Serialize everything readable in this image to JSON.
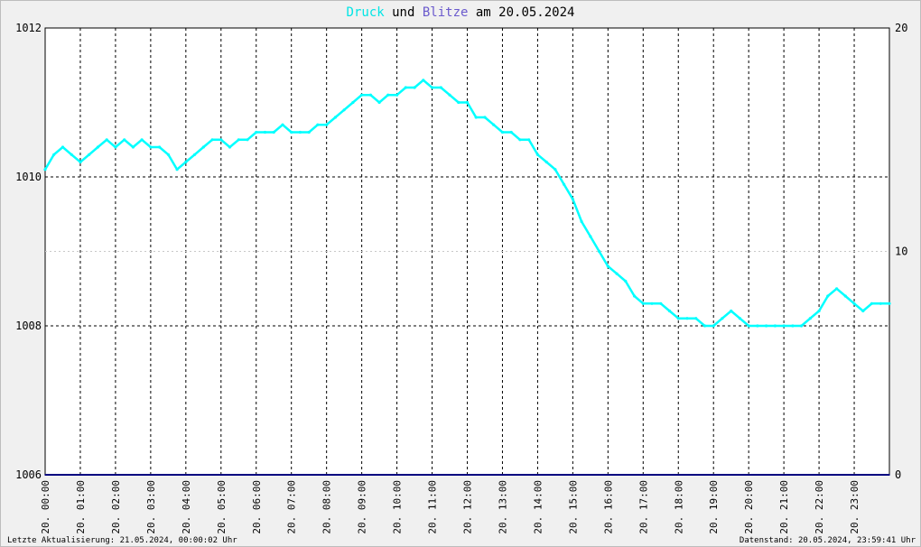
{
  "chart_data": {
    "type": "line",
    "title": {
      "parts": [
        {
          "text": "Druck",
          "color": "#00e5e5"
        },
        {
          "text": " und ",
          "color": "#000000"
        },
        {
          "text": "Blitze",
          "color": "#6a5acd"
        },
        {
          "text": " am 20.05.2024",
          "color": "#000000"
        }
      ]
    },
    "x_tick_labels": [
      "20. 00:00",
      "20. 01:00",
      "20. 02:00",
      "20. 03:00",
      "20. 04:00",
      "20. 05:00",
      "20. 06:00",
      "20. 07:00",
      "20. 08:00",
      "20. 09:00",
      "20. 10:00",
      "20. 11:00",
      "20. 12:00",
      "20. 13:00",
      "20. 14:00",
      "20. 15:00",
      "20. 16:00",
      "20. 17:00",
      "20. 18:00",
      "20. 19:00",
      "20. 20:00",
      "20. 21:00",
      "20. 22:00",
      "20. 23:00"
    ],
    "x_range_hours": [
      0,
      24
    ],
    "y_left": {
      "range": [
        1006,
        1012
      ],
      "ticks": [
        1006,
        1008,
        1010,
        1012
      ]
    },
    "y_right": {
      "range": [
        0,
        20
      ],
      "ticks": [
        0,
        10,
        20
      ]
    },
    "grid": true,
    "series": [
      {
        "name": "Druck",
        "axis": "left",
        "color": "#00ffff",
        "x": [
          0,
          0.25,
          0.5,
          0.75,
          1,
          1.25,
          1.5,
          1.75,
          2,
          2.25,
          2.5,
          2.75,
          3,
          3.25,
          3.5,
          3.75,
          4,
          4.25,
          4.5,
          4.75,
          5,
          5.25,
          5.5,
          5.75,
          6,
          6.25,
          6.5,
          6.75,
          7,
          7.25,
          7.5,
          7.75,
          8,
          8.25,
          8.5,
          8.75,
          9,
          9.25,
          9.5,
          9.75,
          10,
          10.25,
          10.5,
          10.75,
          11,
          11.25,
          11.5,
          11.75,
          12,
          12.25,
          12.5,
          12.75,
          13,
          13.25,
          13.5,
          13.75,
          14,
          14.25,
          14.5,
          14.75,
          15,
          15.25,
          15.5,
          15.75,
          16,
          16.25,
          16.5,
          16.75,
          17,
          17.25,
          17.5,
          17.75,
          18,
          18.25,
          18.5,
          18.75,
          19,
          19.25,
          19.5,
          19.75,
          20,
          20.25,
          20.5,
          20.75,
          21,
          21.25,
          21.5,
          21.75,
          22,
          22.25,
          22.5,
          22.75,
          23,
          23.25,
          23.5,
          23.75,
          24
        ],
        "values": [
          1010.1,
          1010.3,
          1010.4,
          1010.3,
          1010.2,
          1010.3,
          1010.4,
          1010.5,
          1010.4,
          1010.5,
          1010.4,
          1010.5,
          1010.4,
          1010.4,
          1010.3,
          1010.1,
          1010.2,
          1010.3,
          1010.4,
          1010.5,
          1010.5,
          1010.4,
          1010.5,
          1010.5,
          1010.6,
          1010.6,
          1010.6,
          1010.7,
          1010.6,
          1010.6,
          1010.6,
          1010.7,
          1010.7,
          1010.8,
          1010.9,
          1011.0,
          1011.1,
          1011.1,
          1011.0,
          1011.1,
          1011.1,
          1011.2,
          1011.2,
          1011.3,
          1011.2,
          1011.2,
          1011.1,
          1011.0,
          1011.0,
          1010.8,
          1010.8,
          1010.7,
          1010.6,
          1010.6,
          1010.5,
          1010.5,
          1010.3,
          1010.2,
          1010.1,
          1009.9,
          1009.7,
          1009.4,
          1009.2,
          1009.0,
          1008.8,
          1008.7,
          1008.6,
          1008.4,
          1008.3,
          1008.3,
          1008.3,
          1008.2,
          1008.1,
          1008.1,
          1008.1,
          1008.0,
          1008.0,
          1008.1,
          1008.2,
          1008.1,
          1008.0,
          1008.0,
          1008.0,
          1008.0,
          1008.0,
          1008.0,
          1008.0,
          1008.1,
          1008.2,
          1008.4,
          1008.5,
          1008.4,
          1008.3,
          1008.2,
          1008.3,
          1008.3,
          1008.3
        ]
      },
      {
        "name": "Blitze",
        "axis": "right",
        "color": "#000080",
        "x": [
          0,
          24
        ],
        "values": [
          0,
          0
        ]
      }
    ]
  },
  "footer": {
    "left": "Letzte Aktualisierung: 21.05.2024, 00:00:02 Uhr",
    "right": "Datenstand: 20.05.2024, 23:59:41 Uhr"
  }
}
